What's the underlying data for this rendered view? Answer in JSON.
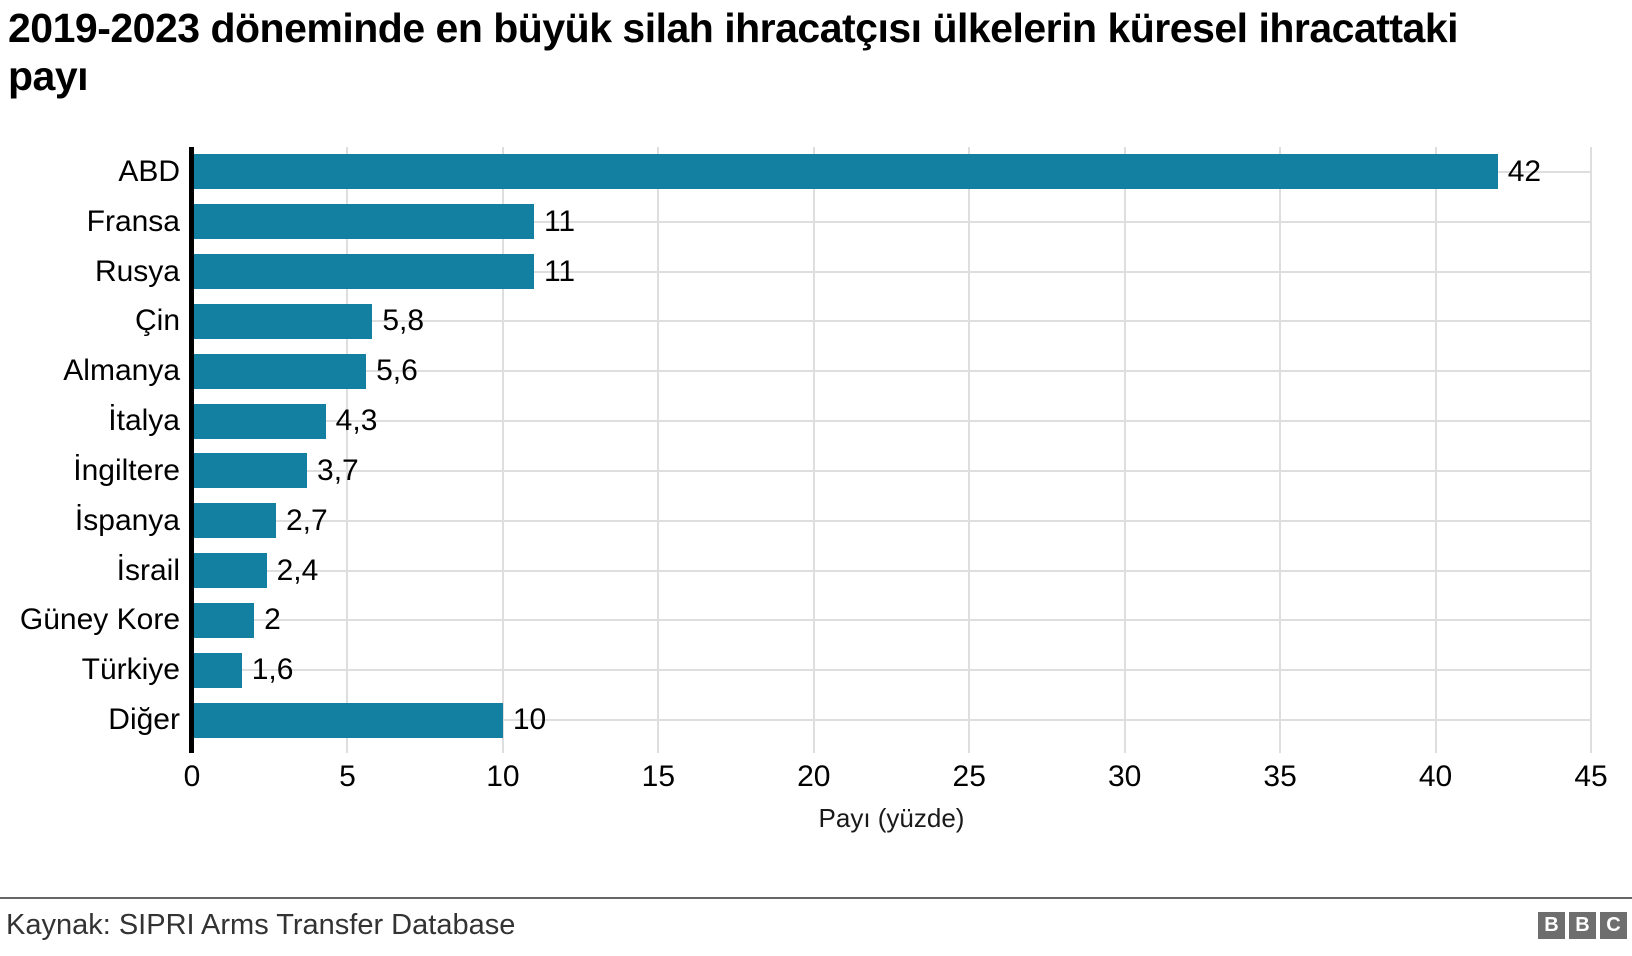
{
  "chart": {
    "title": "2019-2023 döneminde en büyük silah ihracatçısı ülkelerin küresel ihracattaki payı"
  },
  "chart_data": {
    "type": "bar",
    "orientation": "horizontal",
    "title": "2019-2023 döneminde en büyük silah ihracatçısı ülkelerin küresel ihracattaki payı",
    "categories": [
      "ABD",
      "Fransa",
      "Rusya",
      "Çin",
      "Almanya",
      "İtalya",
      "İngiltere",
      "İspanya",
      "İsrail",
      "Güney Kore",
      "Türkiye",
      "Diğer"
    ],
    "values": [
      42,
      11,
      11,
      5.8,
      5.6,
      4.3,
      3.7,
      2.7,
      2.4,
      2,
      1.6,
      10
    ],
    "value_labels": [
      "42",
      "11",
      "11",
      "5,8",
      "5,6",
      "4,3",
      "3,7",
      "2,7",
      "2,4",
      "2",
      "1,6",
      "10"
    ],
    "xlabel": "Payı (yüzde)",
    "ylabel": "",
    "xlim": [
      0,
      45
    ],
    "x_ticks": [
      0,
      5,
      10,
      15,
      20,
      25,
      30,
      35,
      40,
      45
    ],
    "grid": "on",
    "legend": "none",
    "bar_color": "#1380A1",
    "gridline_color": "#dedede",
    "axis_color": "#000000"
  },
  "footer": {
    "source": "Kaynak: SIPRI Arms Transfer Database",
    "logo_blocks": [
      "B",
      "B",
      "C"
    ]
  }
}
